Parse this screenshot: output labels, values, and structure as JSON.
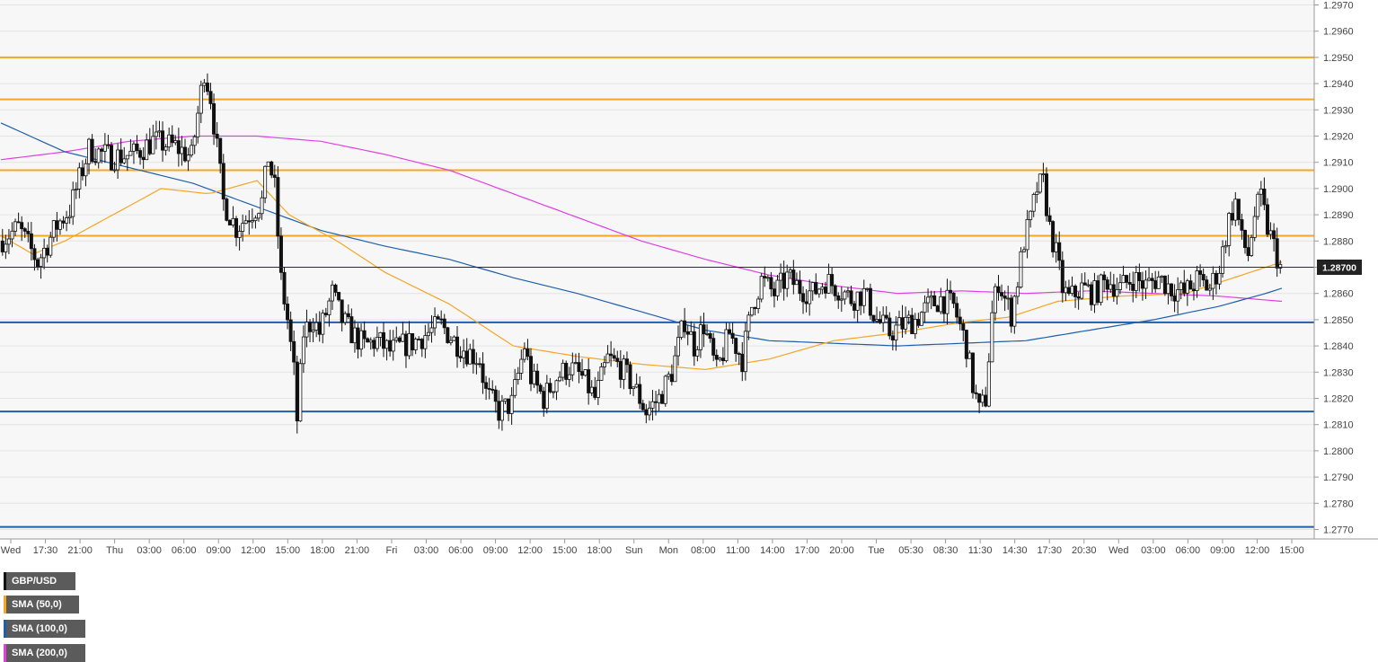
{
  "legend": {
    "symbol": "GBP/USD",
    "items": [
      {
        "label": "GBP/USD",
        "color": "#111111"
      },
      {
        "label": "SMA (50,0)",
        "color": "#f5a623"
      },
      {
        "label": "SMA (100,0)",
        "color": "#1f5fa8"
      },
      {
        "label": "SMA (200,0)",
        "color": "#e040e0"
      }
    ]
  },
  "price_badge": "1.28700",
  "chart_data": {
    "type": "candlestick",
    "y_range": [
      1.2765,
      1.2972
    ],
    "y_ticks": [
      "1.2970",
      "1.2960",
      "1.2950",
      "1.2940",
      "1.2930",
      "1.2920",
      "1.2910",
      "1.2900",
      "1.2890",
      "1.2880",
      "1.2870",
      "1.2860",
      "1.2850",
      "1.2840",
      "1.2830",
      "1.2820",
      "1.2810",
      "1.2800",
      "1.2790",
      "1.2780",
      "1.2770"
    ],
    "x_ticks": [
      "Wed",
      "17:30",
      "21:00",
      "Thu",
      "03:00",
      "06:00",
      "09:00",
      "12:00",
      "15:00",
      "18:00",
      "21:00",
      "Fri",
      "03:00",
      "06:00",
      "09:00",
      "12:00",
      "15:00",
      "18:00",
      "Sun",
      "Mon",
      "08:00",
      "11:00",
      "14:00",
      "17:00",
      "20:00",
      "Tue",
      "05:30",
      "08:30",
      "11:30",
      "14:30",
      "17:30",
      "20:30",
      "Wed",
      "03:00",
      "06:00",
      "09:00",
      "12:00",
      "15:00"
    ],
    "current_price": 1.287,
    "horizontal_levels": [
      {
        "value": 1.295,
        "color": "#f5a623",
        "kind": "resistance"
      },
      {
        "value": 1.2934,
        "color": "#f5a623",
        "kind": "resistance"
      },
      {
        "value": 1.2907,
        "color": "#f5a623",
        "kind": "resistance"
      },
      {
        "value": 1.2882,
        "color": "#f5a623",
        "kind": "resistance"
      },
      {
        "value": 1.2849,
        "color": "#1f5fa8",
        "kind": "support"
      },
      {
        "value": 1.2815,
        "color": "#1f5fa8",
        "kind": "support"
      },
      {
        "value": 1.2771,
        "color": "#1f5fa8",
        "kind": "support"
      }
    ],
    "price_path": [
      [
        0,
        1.288
      ],
      [
        6,
        1.2885
      ],
      [
        12,
        1.2872
      ],
      [
        18,
        1.2886
      ],
      [
        22,
        1.2892
      ],
      [
        28,
        1.2915
      ],
      [
        35,
        1.2912
      ],
      [
        42,
        1.2913
      ],
      [
        48,
        1.2918
      ],
      [
        55,
        1.2916
      ],
      [
        60,
        1.2912
      ],
      [
        64,
        1.2945
      ],
      [
        66,
        1.2935
      ],
      [
        70,
        1.2895
      ],
      [
        74,
        1.2885
      ],
      [
        78,
        1.289
      ],
      [
        82,
        1.2895
      ],
      [
        84,
        1.2912
      ],
      [
        86,
        1.29
      ],
      [
        88,
        1.2865
      ],
      [
        90,
        1.285
      ],
      [
        92,
        1.283
      ],
      [
        93,
        1.2812
      ],
      [
        95,
        1.2845
      ],
      [
        98,
        1.285
      ],
      [
        100,
        1.2845
      ],
      [
        104,
        1.286
      ],
      [
        107,
        1.285
      ],
      [
        110,
        1.2845
      ],
      [
        114,
        1.284
      ],
      [
        118,
        1.2842
      ],
      [
        122,
        1.2838
      ],
      [
        126,
        1.284
      ],
      [
        130,
        1.2842
      ],
      [
        134,
        1.2845
      ],
      [
        138,
        1.2848
      ],
      [
        142,
        1.2842
      ],
      [
        146,
        1.2838
      ],
      [
        150,
        1.2835
      ],
      [
        152,
        1.2822
      ],
      [
        156,
        1.2815
      ],
      [
        160,
        1.2818
      ],
      [
        164,
        1.284
      ],
      [
        166,
        1.2828
      ],
      [
        170,
        1.282
      ],
      [
        174,
        1.2828
      ],
      [
        178,
        1.2832
      ],
      [
        182,
        1.2828
      ],
      [
        186,
        1.282
      ],
      [
        190,
        1.2835
      ],
      [
        194,
        1.2832
      ],
      [
        198,
        1.2825
      ],
      [
        202,
        1.2815
      ],
      [
        206,
        1.282
      ],
      [
        210,
        1.283
      ],
      [
        214,
        1.285
      ],
      [
        217,
        1.284
      ],
      [
        220,
        1.2848
      ],
      [
        224,
        1.283
      ],
      [
        228,
        1.2845
      ],
      [
        232,
        1.2835
      ],
      [
        235,
        1.2855
      ],
      [
        238,
        1.2865
      ],
      [
        242,
        1.286
      ],
      [
        246,
        1.2866
      ],
      [
        250,
        1.2862
      ],
      [
        254,
        1.286
      ],
      [
        258,
        1.2865
      ],
      [
        262,
        1.2862
      ],
      [
        266,
        1.2858
      ],
      [
        270,
        1.286
      ],
      [
        274,
        1.285
      ],
      [
        278,
        1.2845
      ],
      [
        282,
        1.2848
      ],
      [
        286,
        1.285
      ],
      [
        290,
        1.2855
      ],
      [
        294,
        1.2858
      ],
      [
        298,
        1.2855
      ],
      [
        302,
        1.284
      ],
      [
        304,
        1.2825
      ],
      [
        306,
        1.2815
      ],
      [
        308,
        1.282
      ],
      [
        310,
        1.2852
      ],
      [
        312,
        1.2865
      ],
      [
        314,
        1.2858
      ],
      [
        316,
        1.2852
      ],
      [
        318,
        1.2865
      ],
      [
        320,
        1.288
      ],
      [
        322,
        1.2888
      ],
      [
        324,
        1.29
      ],
      [
        326,
        1.2902
      ],
      [
        328,
        1.2885
      ],
      [
        330,
        1.2875
      ],
      [
        332,
        1.2862
      ],
      [
        334,
        1.2858
      ],
      [
        338,
        1.2862
      ],
      [
        342,
        1.286
      ],
      [
        346,
        1.2865
      ],
      [
        350,
        1.2862
      ],
      [
        354,
        1.2866
      ],
      [
        358,
        1.2863
      ],
      [
        362,
        1.2866
      ],
      [
        366,
        1.2862
      ],
      [
        370,
        1.286
      ],
      [
        374,
        1.2865
      ],
      [
        378,
        1.2862
      ],
      [
        381,
        1.287
      ],
      [
        384,
        1.2888
      ],
      [
        386,
        1.2895
      ],
      [
        388,
        1.288
      ],
      [
        390,
        1.2875
      ],
      [
        392,
        1.289
      ],
      [
        394,
        1.2896
      ],
      [
        396,
        1.2885
      ],
      [
        398,
        1.2878
      ],
      [
        400,
        1.287
      ]
    ],
    "sma_50_path": [
      [
        0,
        1.2882
      ],
      [
        10,
        1.2875
      ],
      [
        20,
        1.288
      ],
      [
        35,
        1.289
      ],
      [
        50,
        1.29
      ],
      [
        65,
        1.2898
      ],
      [
        80,
        1.2903
      ],
      [
        90,
        1.289
      ],
      [
        105,
        1.288
      ],
      [
        120,
        1.2868
      ],
      [
        140,
        1.2856
      ],
      [
        160,
        1.284
      ],
      [
        180,
        1.2836
      ],
      [
        200,
        1.2833
      ],
      [
        220,
        1.2831
      ],
      [
        240,
        1.2835
      ],
      [
        260,
        1.2842
      ],
      [
        280,
        1.2845
      ],
      [
        300,
        1.2849
      ],
      [
        315,
        1.2851
      ],
      [
        330,
        1.2857
      ],
      [
        350,
        1.2859
      ],
      [
        370,
        1.286
      ],
      [
        385,
        1.2866
      ],
      [
        400,
        1.2872
      ]
    ],
    "sma_100_path": [
      [
        0,
        1.2925
      ],
      [
        20,
        1.2914
      ],
      [
        40,
        1.2908
      ],
      [
        60,
        1.2902
      ],
      [
        80,
        1.2893
      ],
      [
        100,
        1.2884
      ],
      [
        120,
        1.2878
      ],
      [
        140,
        1.2873
      ],
      [
        160,
        1.2866
      ],
      [
        180,
        1.286
      ],
      [
        200,
        1.2853
      ],
      [
        220,
        1.2846
      ],
      [
        240,
        1.2842
      ],
      [
        260,
        1.2841
      ],
      [
        280,
        1.284
      ],
      [
        300,
        1.2841
      ],
      [
        320,
        1.2842
      ],
      [
        340,
        1.2846
      ],
      [
        360,
        1.285
      ],
      [
        380,
        1.2855
      ],
      [
        395,
        1.286
      ],
      [
        400,
        1.2862
      ]
    ],
    "sma_200_path": [
      [
        0,
        1.2911
      ],
      [
        20,
        1.2914
      ],
      [
        40,
        1.2918
      ],
      [
        60,
        1.292
      ],
      [
        80,
        1.292
      ],
      [
        100,
        1.2918
      ],
      [
        120,
        1.2913
      ],
      [
        140,
        1.2907
      ],
      [
        160,
        1.2898
      ],
      [
        180,
        1.2889
      ],
      [
        200,
        1.288
      ],
      [
        220,
        1.2873
      ],
      [
        240,
        1.2867
      ],
      [
        260,
        1.2863
      ],
      [
        280,
        1.286
      ],
      [
        300,
        1.2861
      ],
      [
        320,
        1.286
      ],
      [
        340,
        1.2861
      ],
      [
        360,
        1.286
      ],
      [
        380,
        1.2859
      ],
      [
        400,
        1.2857
      ]
    ]
  }
}
